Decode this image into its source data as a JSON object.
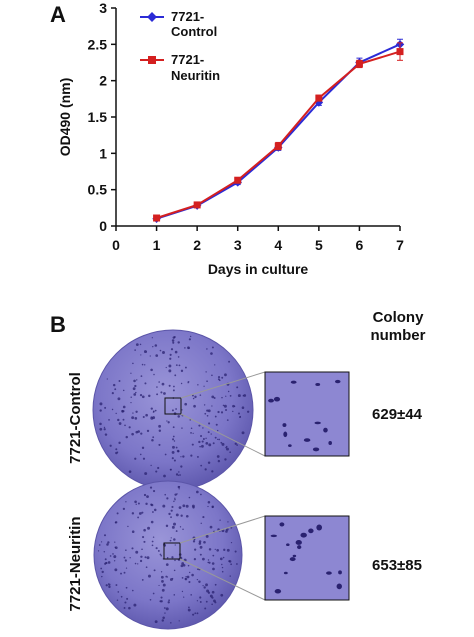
{
  "panel_a_label": "A",
  "panel_b_label": "B",
  "chart_data": {
    "type": "line",
    "xlabel": "Days in culture",
    "ylabel": "OD490 (nm)",
    "xlim": [
      0,
      7
    ],
    "ylim": [
      0,
      3
    ],
    "x_ticks": [
      "0",
      "1",
      "2",
      "3",
      "4",
      "5",
      "6",
      "7"
    ],
    "y_ticks": [
      "0",
      "0.5",
      "1",
      "1.5",
      "2",
      "2.5",
      "3"
    ],
    "legend_placement": "top-left",
    "x": [
      1,
      2,
      3,
      4,
      5,
      6,
      7
    ],
    "series": [
      {
        "name_line1": "7721-",
        "name_line2": "Control",
        "color": "#2b2bd6",
        "marker": "diamond",
        "values": [
          0.1,
          0.28,
          0.6,
          1.08,
          1.7,
          2.25,
          2.5
        ],
        "errors": [
          0.02,
          0.02,
          0.03,
          0.04,
          0.04,
          0.06,
          0.07
        ]
      },
      {
        "name_line1": "7721-",
        "name_line2": "Neuritin",
        "color": "#d42020",
        "marker": "square",
        "values": [
          0.11,
          0.29,
          0.63,
          1.1,
          1.76,
          2.23,
          2.4
        ],
        "errors": [
          0.02,
          0.02,
          0.03,
          0.05,
          0.04,
          0.05,
          0.12
        ]
      }
    ]
  },
  "colony": {
    "header_line1": "Colony",
    "header_line2": "number",
    "rows": [
      {
        "label": "7721-Control",
        "value": "629±44"
      },
      {
        "label": "7721-Neuritin",
        "value": "653±85"
      }
    ],
    "colors": {
      "dish": "#7a74c6",
      "dish_edge": "#5b55a8",
      "zoom_bg": "#8d87d2",
      "colony": "#2a2270"
    }
  }
}
